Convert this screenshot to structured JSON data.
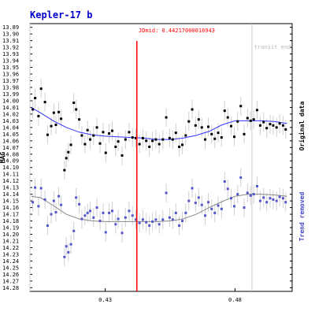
{
  "chart_data": {
    "type": "scatter",
    "title": "Kepler-17 b",
    "ylabel": "MAG",
    "xlabel": "",
    "xlim": [
      0.401,
      0.502
    ],
    "ylim": [
      14.2855,
      13.8845
    ],
    "x_ticks": [
      0.43,
      0.48
    ],
    "y_ticks": [
      13.89,
      13.9,
      13.91,
      13.92,
      13.93,
      13.94,
      13.95,
      13.96,
      13.97,
      13.98,
      13.99,
      14.0,
      14.01,
      14.02,
      14.03,
      14.04,
      14.05,
      14.06,
      14.07,
      14.08,
      14.09,
      14.1,
      14.11,
      14.12,
      14.13,
      14.14,
      14.15,
      14.16,
      14.17,
      14.18,
      14.19,
      14.2,
      14.21,
      14.22,
      14.23,
      14.24,
      14.25,
      14.26,
      14.27,
      14.28
    ],
    "jdmid_label": "JDmid: 0.44217000016943",
    "jdmid": 0.44217,
    "transit_end_label": "transit end",
    "transit_end": 0.4865,
    "transit_start": 0.401,
    "grid": false,
    "series": [
      {
        "name": "Original data",
        "color": "#000000",
        "marker": "square",
        "values": [
          [
            0.4021,
            14.013
          ],
          [
            0.403,
            13.996
          ],
          [
            0.4043,
            14.023
          ],
          [
            0.4053,
            13.982
          ],
          [
            0.4068,
            14.002
          ],
          [
            0.4078,
            14.051
          ],
          [
            0.4092,
            14.038
          ],
          [
            0.4102,
            14.018
          ],
          [
            0.411,
            14.036
          ],
          [
            0.4121,
            14.017
          ],
          [
            0.413,
            14.027
          ],
          [
            0.4143,
            14.104
          ],
          [
            0.415,
            14.086
          ],
          [
            0.4158,
            14.077
          ],
          [
            0.4168,
            14.066
          ],
          [
            0.4179,
            14.003
          ],
          [
            0.4188,
            14.013
          ],
          [
            0.42,
            14.028
          ],
          [
            0.421,
            14.052
          ],
          [
            0.4222,
            14.065
          ],
          [
            0.4232,
            14.044
          ],
          [
            0.4242,
            14.058
          ],
          [
            0.4255,
            14.052
          ],
          [
            0.4268,
            14.04
          ],
          [
            0.428,
            14.064
          ],
          [
            0.4292,
            14.047
          ],
          [
            0.4302,
            14.078
          ],
          [
            0.4315,
            14.049
          ],
          [
            0.4327,
            14.045
          ],
          [
            0.434,
            14.069
          ],
          [
            0.435,
            14.061
          ],
          [
            0.4365,
            14.082
          ],
          [
            0.4378,
            14.058
          ],
          [
            0.4392,
            14.047
          ],
          [
            0.4405,
            14.055
          ],
          [
            0.4418,
            14.056
          ],
          [
            0.4432,
            14.065
          ],
          [
            0.4445,
            14.056
          ],
          [
            0.4458,
            14.06
          ],
          [
            0.447,
            14.069
          ],
          [
            0.4482,
            14.06
          ],
          [
            0.4495,
            14.058
          ],
          [
            0.4508,
            14.065
          ],
          [
            0.4522,
            14.058
          ],
          [
            0.4535,
            14.025
          ],
          [
            0.4548,
            14.056
          ],
          [
            0.456,
            14.058
          ],
          [
            0.4572,
            14.048
          ],
          [
            0.4585,
            14.069
          ],
          [
            0.4597,
            14.066
          ],
          [
            0.461,
            14.052
          ],
          [
            0.4622,
            14.031
          ],
          [
            0.4635,
            14.013
          ],
          [
            0.4648,
            14.037
          ],
          [
            0.466,
            14.028
          ],
          [
            0.4672,
            14.04
          ],
          [
            0.4685,
            14.058
          ],
          [
            0.4697,
            14.039
          ],
          [
            0.471,
            14.05
          ],
          [
            0.4722,
            14.057
          ],
          [
            0.4735,
            14.048
          ],
          [
            0.4748,
            14.055
          ],
          [
            0.476,
            14.015
          ],
          [
            0.4772,
            14.025
          ],
          [
            0.4785,
            14.038
          ],
          [
            0.4797,
            14.054
          ],
          [
            0.481,
            14.031
          ],
          [
            0.4822,
            14.008
          ],
          [
            0.4835,
            14.05
          ],
          [
            0.4848,
            14.026
          ],
          [
            0.486,
            14.03
          ],
          [
            0.4872,
            14.028
          ],
          [
            0.4885,
            14.014
          ],
          [
            0.4897,
            14.037
          ],
          [
            0.491,
            14.032
          ],
          [
            0.4922,
            14.041
          ],
          [
            0.4935,
            14.035
          ],
          [
            0.4947,
            14.037
          ],
          [
            0.496,
            14.04
          ],
          [
            0.4972,
            14.034
          ],
          [
            0.4985,
            14.037
          ],
          [
            0.4995,
            14.043
          ]
        ],
        "trend": [
          [
            0.4015,
            14.01
          ],
          [
            0.405,
            14.018
          ],
          [
            0.41,
            14.03
          ],
          [
            0.415,
            14.04
          ],
          [
            0.42,
            14.047
          ],
          [
            0.425,
            14.051
          ],
          [
            0.43,
            14.053
          ],
          [
            0.435,
            14.054
          ],
          [
            0.44,
            14.055
          ],
          [
            0.445,
            14.056
          ],
          [
            0.45,
            14.058
          ],
          [
            0.455,
            14.058
          ],
          [
            0.46,
            14.056
          ],
          [
            0.465,
            14.052
          ],
          [
            0.47,
            14.046
          ],
          [
            0.475,
            14.036
          ],
          [
            0.48,
            14.03
          ],
          [
            0.485,
            14.03
          ],
          [
            0.49,
            14.03
          ],
          [
            0.495,
            14.031
          ],
          [
            0.5,
            14.034
          ]
        ]
      },
      {
        "name": "Trend removed",
        "color": "#5555cc",
        "marker": "square",
        "values": [
          [
            0.4021,
            14.152
          ],
          [
            0.403,
            14.13
          ],
          [
            0.4043,
            14.158
          ],
          [
            0.4053,
            14.131
          ],
          [
            0.4068,
            14.148
          ],
          [
            0.4078,
            14.187
          ],
          [
            0.4092,
            14.17
          ],
          [
            0.4102,
            14.15
          ],
          [
            0.411,
            14.167
          ],
          [
            0.4121,
            14.143
          ],
          [
            0.413,
            14.156
          ],
          [
            0.4143,
            14.234
          ],
          [
            0.415,
            14.218
          ],
          [
            0.4158,
            14.227
          ],
          [
            0.4168,
            14.215
          ],
          [
            0.4179,
            14.195
          ],
          [
            0.4188,
            14.145
          ],
          [
            0.42,
            14.155
          ],
          [
            0.421,
            14.177
          ],
          [
            0.4222,
            14.172
          ],
          [
            0.4232,
            14.168
          ],
          [
            0.4242,
            14.165
          ],
          [
            0.4255,
            14.175
          ],
          [
            0.4268,
            14.16
          ],
          [
            0.428,
            14.18
          ],
          [
            0.4292,
            14.168
          ],
          [
            0.4302,
            14.197
          ],
          [
            0.4315,
            14.168
          ],
          [
            0.4327,
            14.165
          ],
          [
            0.434,
            14.185
          ],
          [
            0.435,
            14.177
          ],
          [
            0.4365,
            14.198
          ],
          [
            0.4378,
            14.175
          ],
          [
            0.4392,
            14.165
          ],
          [
            0.4405,
            14.172
          ],
          [
            0.4418,
            14.178
          ],
          [
            0.4432,
            14.183
          ],
          [
            0.4445,
            14.178
          ],
          [
            0.4458,
            14.182
          ],
          [
            0.447,
            14.187
          ],
          [
            0.4482,
            14.181
          ],
          [
            0.4495,
            14.178
          ],
          [
            0.4508,
            14.185
          ],
          [
            0.4522,
            14.178
          ],
          [
            0.4535,
            14.138
          ],
          [
            0.4548,
            14.175
          ],
          [
            0.456,
            14.178
          ],
          [
            0.4572,
            14.168
          ],
          [
            0.4585,
            14.187
          ],
          [
            0.4597,
            14.18
          ],
          [
            0.461,
            14.168
          ],
          [
            0.4622,
            14.15
          ],
          [
            0.4635,
            14.131
          ],
          [
            0.4648,
            14.153
          ],
          [
            0.466,
            14.145
          ],
          [
            0.4672,
            14.156
          ],
          [
            0.4685,
            14.172
          ],
          [
            0.4697,
            14.152
          ],
          [
            0.471,
            14.162
          ],
          [
            0.4722,
            14.168
          ],
          [
            0.4735,
            14.157
          ],
          [
            0.4748,
            14.162
          ],
          [
            0.476,
            14.121
          ],
          [
            0.4772,
            14.132
          ],
          [
            0.4785,
            14.146
          ],
          [
            0.4797,
            14.158
          ],
          [
            0.481,
            14.14
          ],
          [
            0.4822,
            14.115
          ],
          [
            0.4835,
            14.16
          ],
          [
            0.4848,
            14.138
          ],
          [
            0.486,
            14.142
          ],
          [
            0.4872,
            14.14
          ],
          [
            0.4885,
            14.128
          ],
          [
            0.4897,
            14.15
          ],
          [
            0.491,
            14.145
          ],
          [
            0.4922,
            14.152
          ],
          [
            0.4935,
            14.146
          ],
          [
            0.4947,
            14.148
          ],
          [
            0.496,
            14.15
          ],
          [
            0.4972,
            14.144
          ],
          [
            0.4985,
            14.146
          ],
          [
            0.4995,
            14.152
          ]
        ],
        "trend": [
          [
            0.4015,
            14.143
          ],
          [
            0.405,
            14.145
          ],
          [
            0.41,
            14.157
          ],
          [
            0.415,
            14.17
          ],
          [
            0.42,
            14.177
          ],
          [
            0.425,
            14.18
          ],
          [
            0.43,
            14.181
          ],
          [
            0.435,
            14.181
          ],
          [
            0.44,
            14.181
          ],
          [
            0.445,
            14.181
          ],
          [
            0.45,
            14.181
          ],
          [
            0.455,
            14.18
          ],
          [
            0.46,
            14.177
          ],
          [
            0.465,
            14.17
          ],
          [
            0.47,
            14.16
          ],
          [
            0.475,
            14.151
          ],
          [
            0.48,
            14.143
          ],
          [
            0.485,
            14.14
          ],
          [
            0.49,
            14.14
          ],
          [
            0.495,
            14.141
          ],
          [
            0.5,
            14.143
          ]
        ]
      }
    ]
  },
  "colors": {
    "title": "#0000cc",
    "jdmid_line": "#ff0000",
    "jdmid_text": "#ff0000",
    "transit_line": "#cccccc",
    "transit_text": "#bbbbbb",
    "original_trend": "#3333ff",
    "removed_trend": "#888888",
    "removed_label": "#4444cc",
    "errorbar": "#d0d0d0"
  }
}
